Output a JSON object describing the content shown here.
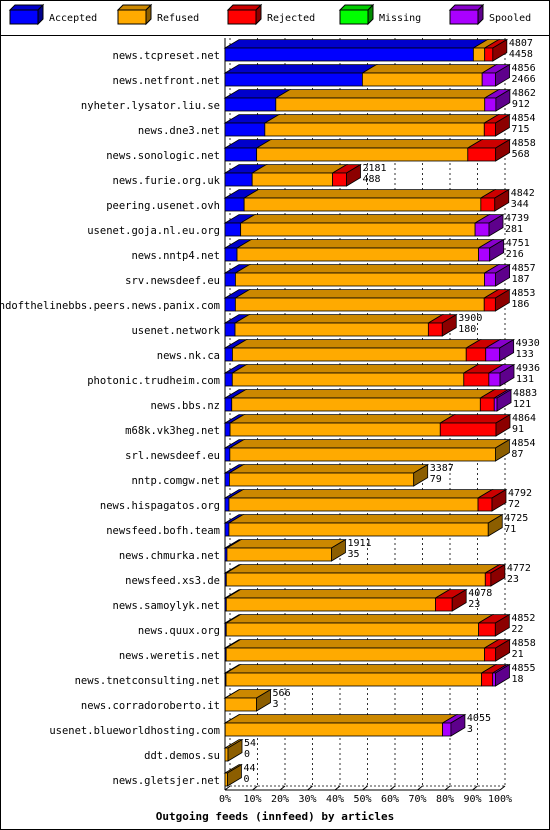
{
  "chart_data": {
    "type": "bar",
    "stacked": true,
    "orientation": "horizontal",
    "xlabel": "Outgoing feeds (innfeed) by articles",
    "ticks": [
      "0%",
      "10%",
      "20%",
      "30%",
      "40%",
      "50%",
      "60%",
      "70%",
      "80%",
      "90%",
      "100%"
    ],
    "legend": {
      "placement": "top",
      "items": [
        {
          "name": "Accepted",
          "color": "#0000ff"
        },
        {
          "name": "Refused",
          "color": "#ffaa00"
        },
        {
          "name": "Rejected",
          "color": "#ff0000"
        },
        {
          "name": "Missing",
          "color": "#00ff00"
        },
        {
          "name": "Spooled",
          "color": "#aa00ff"
        }
      ]
    },
    "scale_max": 4936,
    "rows": [
      {
        "name": "news.tcpreset.net",
        "total": "4807",
        "accepted": "4458",
        "seg": [
          4458,
          203,
          146,
          0,
          0
        ]
      },
      {
        "name": "news.netfront.net",
        "total": "4856",
        "accepted": "2466",
        "seg": [
          2466,
          2150,
          0,
          0,
          240
        ]
      },
      {
        "name": "nyheter.lysator.liu.se",
        "total": "4862",
        "accepted": "912",
        "seg": [
          912,
          3750,
          0,
          0,
          200
        ]
      },
      {
        "name": "news.dne3.net",
        "total": "4854",
        "accepted": "715",
        "seg": [
          715,
          3939,
          200,
          0,
          0
        ]
      },
      {
        "name": "news.sonologic.net",
        "total": "4858",
        "accepted": "568",
        "seg": [
          568,
          3790,
          500,
          0,
          0
        ]
      },
      {
        "name": "news.furie.org.uk",
        "total": "2181",
        "accepted": "488",
        "seg": [
          488,
          1443,
          250,
          0,
          0
        ]
      },
      {
        "name": "peering.usenet.ovh",
        "total": "4842",
        "accepted": "344",
        "seg": [
          344,
          4248,
          250,
          0,
          0
        ]
      },
      {
        "name": "usenet.goja.nl.eu.org",
        "total": "4739",
        "accepted": "281",
        "seg": [
          281,
          4208,
          0,
          0,
          250
        ]
      },
      {
        "name": "news.nntp4.net",
        "total": "4751",
        "accepted": "216",
        "seg": [
          216,
          4335,
          0,
          0,
          200
        ]
      },
      {
        "name": "srv.newsdeef.eu",
        "total": "4857",
        "accepted": "187",
        "seg": [
          187,
          4470,
          0,
          0,
          200
        ]
      },
      {
        "name": "endofthelinebbs.peers.news.panix.com",
        "total": "4853",
        "accepted": "186",
        "seg": [
          186,
          4467,
          200,
          0,
          0
        ]
      },
      {
        "name": "usenet.network",
        "total": "3900",
        "accepted": "180",
        "seg": [
          180,
          3470,
          250,
          0,
          0
        ]
      },
      {
        "name": "news.nk.ca",
        "total": "4930",
        "accepted": "133",
        "seg": [
          133,
          4197,
          350,
          0,
          250
        ]
      },
      {
        "name": "photonic.trudheim.com",
        "total": "4936",
        "accepted": "131",
        "seg": [
          131,
          4155,
          450,
          0,
          200
        ]
      },
      {
        "name": "news.bbs.nz",
        "total": "4883",
        "accepted": "121",
        "seg": [
          121,
          4462,
          250,
          0,
          50
        ]
      },
      {
        "name": "m68k.vk3heg.net",
        "total": "4864",
        "accepted": "91",
        "seg": [
          91,
          3773,
          1000,
          0,
          0
        ]
      },
      {
        "name": "srl.newsdeef.eu",
        "total": "4854",
        "accepted": "87",
        "seg": [
          87,
          4767,
          0,
          0,
          0
        ]
      },
      {
        "name": "nntp.comgw.net",
        "total": "3387",
        "accepted": "79",
        "seg": [
          79,
          3308,
          0,
          0,
          0
        ]
      },
      {
        "name": "news.hispagatos.org",
        "total": "4792",
        "accepted": "72",
        "seg": [
          72,
          4470,
          250,
          0,
          0
        ]
      },
      {
        "name": "newsfeed.bofh.team",
        "total": "4725",
        "accepted": "71",
        "seg": [
          71,
          4654,
          0,
          0,
          0
        ]
      },
      {
        "name": "news.chmurka.net",
        "total": "1911",
        "accepted": "35",
        "seg": [
          35,
          1876,
          0,
          0,
          0
        ]
      },
      {
        "name": "newsfeed.xs3.de",
        "total": "4772",
        "accepted": "23",
        "seg": [
          23,
          4649,
          100,
          0,
          0
        ]
      },
      {
        "name": "news.samoylyk.net",
        "total": "4078",
        "accepted": "23",
        "seg": [
          23,
          3755,
          300,
          0,
          0
        ]
      },
      {
        "name": "news.quux.org",
        "total": "4852",
        "accepted": "22",
        "seg": [
          22,
          4530,
          300,
          0,
          0
        ]
      },
      {
        "name": "news.weretis.net",
        "total": "4858",
        "accepted": "21",
        "seg": [
          21,
          4637,
          200,
          0,
          0
        ]
      },
      {
        "name": "news.tnetconsulting.net",
        "total": "4855",
        "accepted": "18",
        "seg": [
          18,
          4587,
          200,
          0,
          50
        ]
      },
      {
        "name": "news.corradoroberto.it",
        "total": "566",
        "accepted": "3",
        "seg": [
          3,
          563,
          0,
          0,
          0
        ]
      },
      {
        "name": "usenet.blueworldhosting.com",
        "total": "4055",
        "accepted": "3",
        "seg": [
          3,
          3902,
          0,
          0,
          150
        ]
      },
      {
        "name": "ddt.demos.su",
        "total": "54",
        "accepted": "0",
        "seg": [
          0,
          54,
          0,
          0,
          0
        ]
      },
      {
        "name": "news.gletsjer.net",
        "total": "44",
        "accepted": "0",
        "seg": [
          0,
          44,
          0,
          0,
          0
        ]
      }
    ]
  }
}
